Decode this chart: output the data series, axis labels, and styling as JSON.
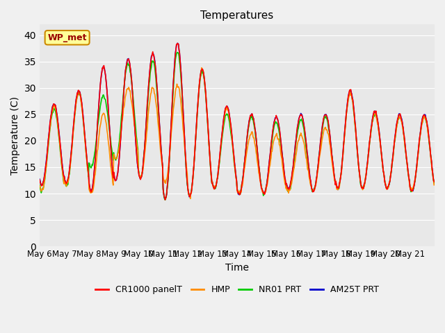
{
  "title": "Temperatures",
  "xlabel": "Time",
  "ylabel": "Temperature (C)",
  "ylim": [
    0,
    42
  ],
  "yticks": [
    0,
    5,
    10,
    15,
    20,
    25,
    30,
    35,
    40
  ],
  "x_tick_labels": [
    "May 6",
    "May 7",
    "May 8",
    "May 9",
    "May 10",
    "May 11",
    "May 12",
    "May 13",
    "May 14",
    "May 15",
    "May 16",
    "May 17",
    "May 18",
    "May 19",
    "May 20",
    "May 21"
  ],
  "legend_labels": [
    "CR1000 panelT",
    "HMP",
    "NR01 PRT",
    "AM25T PRT"
  ],
  "legend_colors": [
    "#ff0000",
    "#ff8c00",
    "#00cc00",
    "#0000cc"
  ],
  "annotation_text": "WP_met",
  "annotation_color": "#990000",
  "annotation_bg": "#ffff99",
  "bg_color": "#e8e8e8",
  "fig_bg_color": "#f0f0f0",
  "line_width": 1.2,
  "n_days": 16,
  "points_per_day": 48,
  "daily_min": [
    11.5,
    12.0,
    10.5,
    12.5,
    12.8,
    9.0,
    9.5,
    11.0,
    9.8,
    10.0,
    11.0,
    10.5,
    11.0,
    11.0,
    11.0,
    10.5
  ],
  "daily_max": [
    27.0,
    29.5,
    34.0,
    35.5,
    36.5,
    38.5,
    33.5,
    26.5,
    25.0,
    24.5,
    25.0,
    25.0,
    29.5,
    25.5,
    25.0,
    25.0
  ],
  "hmp_daily_min": [
    10.5,
    11.5,
    10.0,
    16.5,
    13.0,
    12.0,
    9.5,
    11.0,
    10.0,
    10.0,
    10.5,
    10.5,
    11.0,
    11.0,
    11.0,
    10.5
  ],
  "hmp_daily_max": [
    26.5,
    29.0,
    25.0,
    30.0,
    30.0,
    30.5,
    33.5,
    26.0,
    21.5,
    21.0,
    21.0,
    22.5,
    29.0,
    25.0,
    24.5,
    24.5
  ],
  "nro1_daily_min": [
    10.5,
    11.5,
    15.0,
    16.5,
    13.0,
    9.0,
    9.5,
    11.0,
    10.0,
    10.0,
    10.5,
    10.5,
    11.0,
    11.0,
    11.0,
    10.5
  ],
  "nro1_daily_max": [
    26.0,
    29.0,
    28.5,
    34.5,
    35.0,
    37.0,
    33.0,
    25.0,
    24.5,
    23.5,
    24.0,
    24.5,
    29.0,
    25.0,
    24.5,
    24.5
  ]
}
